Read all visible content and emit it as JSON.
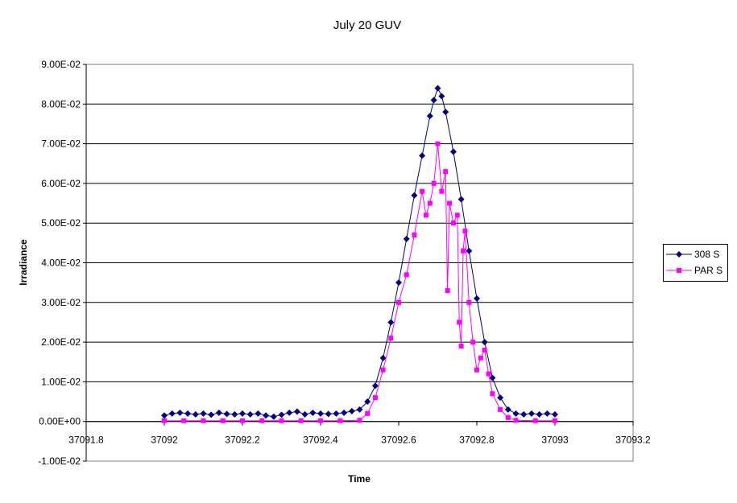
{
  "chart_data": {
    "type": "scatter",
    "title": "July 20 GUV",
    "xlabel": "Time",
    "ylabel": "Irradiance",
    "xlim": [
      37091.8,
      37093.2
    ],
    "ylim": [
      -0.01,
      0.09
    ],
    "x_ticks": [
      "37091.8",
      "37092",
      "37092.2",
      "37092.4",
      "37092.6",
      "37092.8",
      "37093",
      "37093.2"
    ],
    "y_ticks": [
      "-1.00E-02",
      "0.00E+00",
      "1.00E-02",
      "2.00E-02",
      "3.00E-02",
      "4.00E-02",
      "5.00E-02",
      "6.00E-02",
      "7.00E-02",
      "8.00E-02",
      "9.00E-02"
    ],
    "grid": "horizontal",
    "legend_position": "right",
    "series": [
      {
        "name": "308 S",
        "color": "#000080",
        "marker": "diamond",
        "points": [
          [
            37092.0,
            0.0015
          ],
          [
            37092.02,
            0.002
          ],
          [
            37092.04,
            0.0022
          ],
          [
            37092.06,
            0.002
          ],
          [
            37092.08,
            0.0018
          ],
          [
            37092.1,
            0.002
          ],
          [
            37092.12,
            0.0017
          ],
          [
            37092.14,
            0.0022
          ],
          [
            37092.16,
            0.0019
          ],
          [
            37092.18,
            0.0018
          ],
          [
            37092.2,
            0.002
          ],
          [
            37092.22,
            0.0018
          ],
          [
            37092.24,
            0.002
          ],
          [
            37092.26,
            0.0015
          ],
          [
            37092.28,
            0.0012
          ],
          [
            37092.3,
            0.0017
          ],
          [
            37092.32,
            0.0022
          ],
          [
            37092.34,
            0.0025
          ],
          [
            37092.36,
            0.0018
          ],
          [
            37092.38,
            0.0022
          ],
          [
            37092.4,
            0.002
          ],
          [
            37092.42,
            0.0019
          ],
          [
            37092.44,
            0.002
          ],
          [
            37092.46,
            0.0022
          ],
          [
            37092.48,
            0.0026
          ],
          [
            37092.5,
            0.003
          ],
          [
            37092.52,
            0.005
          ],
          [
            37092.54,
            0.009
          ],
          [
            37092.56,
            0.016
          ],
          [
            37092.58,
            0.025
          ],
          [
            37092.6,
            0.035
          ],
          [
            37092.62,
            0.046
          ],
          [
            37092.64,
            0.057
          ],
          [
            37092.66,
            0.067
          ],
          [
            37092.68,
            0.077
          ],
          [
            37092.69,
            0.081
          ],
          [
            37092.7,
            0.084
          ],
          [
            37092.71,
            0.082
          ],
          [
            37092.72,
            0.078
          ],
          [
            37092.74,
            0.068
          ],
          [
            37092.76,
            0.056
          ],
          [
            37092.78,
            0.043
          ],
          [
            37092.8,
            0.031
          ],
          [
            37092.82,
            0.02
          ],
          [
            37092.84,
            0.011
          ],
          [
            37092.86,
            0.006
          ],
          [
            37092.88,
            0.003
          ],
          [
            37092.9,
            0.002
          ],
          [
            37092.92,
            0.0018
          ],
          [
            37092.94,
            0.002
          ],
          [
            37092.96,
            0.0018
          ],
          [
            37092.98,
            0.002
          ],
          [
            37093.0,
            0.0018
          ]
        ]
      },
      {
        "name": "PAR S",
        "color": "#FF00FF",
        "marker": "square",
        "points": [
          [
            37092.0,
            0.0002
          ],
          [
            37092.05,
            0.0002
          ],
          [
            37092.1,
            0.0002
          ],
          [
            37092.15,
            0.0002
          ],
          [
            37092.2,
            0.0002
          ],
          [
            37092.25,
            0.0002
          ],
          [
            37092.3,
            0.0002
          ],
          [
            37092.35,
            0.0002
          ],
          [
            37092.4,
            0.0002
          ],
          [
            37092.45,
            0.0002
          ],
          [
            37092.5,
            0.0003
          ],
          [
            37092.52,
            0.002
          ],
          [
            37092.54,
            0.006
          ],
          [
            37092.56,
            0.013
          ],
          [
            37092.58,
            0.021
          ],
          [
            37092.6,
            0.03
          ],
          [
            37092.62,
            0.037
          ],
          [
            37092.64,
            0.047
          ],
          [
            37092.66,
            0.058
          ],
          [
            37092.67,
            0.052
          ],
          [
            37092.68,
            0.055
          ],
          [
            37092.69,
            0.06
          ],
          [
            37092.7,
            0.07
          ],
          [
            37092.71,
            0.058
          ],
          [
            37092.72,
            0.063
          ],
          [
            37092.725,
            0.033
          ],
          [
            37092.73,
            0.055
          ],
          [
            37092.74,
            0.05
          ],
          [
            37092.75,
            0.052
          ],
          [
            37092.755,
            0.025
          ],
          [
            37092.76,
            0.019
          ],
          [
            37092.765,
            0.043
          ],
          [
            37092.77,
            0.048
          ],
          [
            37092.78,
            0.03
          ],
          [
            37092.79,
            0.02
          ],
          [
            37092.8,
            0.013
          ],
          [
            37092.81,
            0.016
          ],
          [
            37092.82,
            0.018
          ],
          [
            37092.83,
            0.012
          ],
          [
            37092.84,
            0.007
          ],
          [
            37092.86,
            0.003
          ],
          [
            37092.88,
            0.001
          ],
          [
            37092.9,
            0.0003
          ],
          [
            37092.95,
            0.0002
          ],
          [
            37093.0,
            0.0002
          ]
        ]
      }
    ]
  }
}
